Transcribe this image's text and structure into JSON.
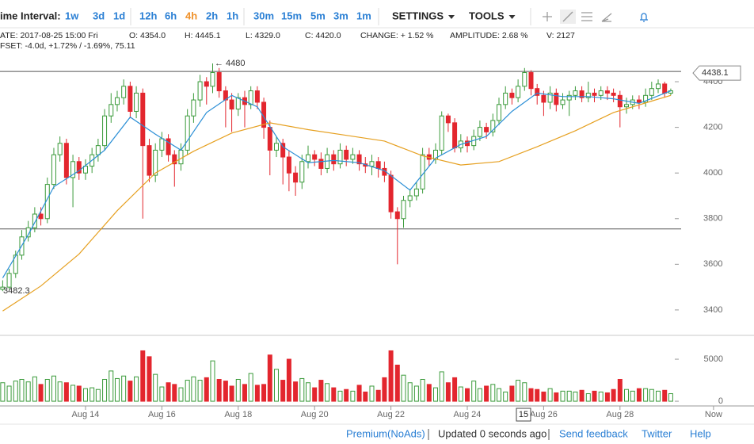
{
  "toolbar": {
    "label": "ime Interval:",
    "intervals": [
      [
        "1w",
        "3d",
        "1d"
      ],
      [
        "12h",
        "6h",
        "4h",
        "2h",
        "1h"
      ],
      [
        "30m",
        "15m",
        "5m",
        "3m",
        "1m"
      ]
    ],
    "active": "4h",
    "menus": [
      "SETTINGS",
      "TOOLS"
    ]
  },
  "info": {
    "line1": [
      "ATE: 2017-08-25 15:00 Fri",
      "O: 4354.0",
      "H: 4445.1",
      "L: 4329.0",
      "C: 4420.0",
      "CHANGE: + 1.52 %",
      "AMPLITUDE: 2.68 %",
      "V: 2127"
    ],
    "line2": "FSET: -4.0d, +1.72% / -1.69%, 75.11"
  },
  "chart_data": {
    "type": "candlestick",
    "xlim": [
      11.76,
      31.51
    ],
    "xticks": [
      {
        "value": 14,
        "label": "Aug 14"
      },
      {
        "value": 16,
        "label": "Aug 16"
      },
      {
        "value": 18,
        "label": "Aug 18"
      },
      {
        "value": 20,
        "label": "Aug 20"
      },
      {
        "value": 22,
        "label": "Aug 22"
      },
      {
        "value": 24,
        "label": "Aug 24"
      },
      {
        "value": 26,
        "label": "Aug 26"
      },
      {
        "value": 28,
        "label": "Aug 28"
      },
      {
        "value": 30.45,
        "label": "Now"
      }
    ],
    "ylim": [
      3292,
      4487
    ],
    "yticks": [
      3400,
      3600,
      3800,
      4000,
      4200,
      4400
    ],
    "y2lim": [
      -560,
      7740
    ],
    "y2ticks": [
      0,
      5000
    ],
    "colors": {
      "up": "#3a9a3a",
      "down": "#e3262e"
    },
    "x": [
      11.83,
      12,
      12.17,
      12.33,
      12.5,
      12.67,
      12.83,
      13,
      13.17,
      13.33,
      13.5,
      13.67,
      13.83,
      14,
      14.17,
      14.33,
      14.5,
      14.67,
      14.83,
      15,
      15.17,
      15.33,
      15.5,
      15.67,
      15.83,
      16,
      16.17,
      16.33,
      16.5,
      16.67,
      16.83,
      17,
      17.17,
      17.33,
      17.5,
      17.67,
      17.83,
      18,
      18.17,
      18.33,
      18.5,
      18.67,
      18.83,
      19,
      19.17,
      19.33,
      19.5,
      19.67,
      19.83,
      20,
      20.17,
      20.33,
      20.5,
      20.67,
      20.83,
      21,
      21.17,
      21.33,
      21.5,
      21.67,
      21.83,
      22,
      22.17,
      22.33,
      22.5,
      22.67,
      22.83,
      23,
      23.17,
      23.33,
      23.5,
      23.67,
      23.83,
      24,
      24.17,
      24.33,
      24.5,
      24.67,
      24.83,
      25,
      25.17,
      25.33,
      25.5,
      25.67,
      25.83,
      26,
      26.17,
      26.33,
      26.5,
      26.67,
      26.83,
      27,
      27.17,
      27.33,
      27.5,
      27.67,
      27.83,
      28,
      28.17,
      28.33,
      28.5,
      28.67,
      28.83,
      29,
      29.17,
      29.33
    ],
    "open": [
      3490,
      3500,
      3560,
      3640,
      3720,
      3760,
      3820,
      3800,
      3950,
      4080,
      4130,
      3980,
      4050,
      4000,
      4030,
      4080,
      4120,
      4250,
      4300,
      4330,
      4380,
      4270,
      4350,
      4120,
      3990,
      4100,
      4150,
      4080,
      4040,
      4100,
      4250,
      4320,
      4400,
      4380,
      4440,
      4360,
      4320,
      4280,
      4330,
      4300,
      4360,
      4310,
      4200,
      4100,
      4130,
      4070,
      4000,
      3960,
      4050,
      4080,
      4060,
      4020,
      4080,
      4040,
      4100,
      4060,
      4080,
      4040,
      4030,
      4050,
      4020,
      3990,
      3830,
      3800,
      3880,
      3900,
      3930,
      4080,
      4060,
      4100,
      4250,
      4220,
      4110,
      4140,
      4120,
      4160,
      4200,
      4180,
      4230,
      4300,
      4350,
      4330,
      4380,
      4440,
      4370,
      4340,
      4310,
      4350,
      4300,
      4320,
      4340,
      4360,
      4330,
      4350,
      4340,
      4360,
      4350,
      4340,
      4290,
      4300,
      4320,
      4310,
      4340,
      4370,
      4390,
      4350
    ],
    "high": [
      3530,
      3580,
      3660,
      3750,
      3790,
      3850,
      3850,
      3980,
      4110,
      4160,
      4150,
      4080,
      4070,
      4060,
      4110,
      4150,
      4280,
      4350,
      4360,
      4410,
      4400,
      4380,
      4370,
      4150,
      4130,
      4180,
      4170,
      4100,
      4130,
      4280,
      4350,
      4430,
      4420,
      4480,
      4460,
      4380,
      4350,
      4350,
      4360,
      4380,
      4380,
      4330,
      4230,
      4160,
      4150,
      4100,
      4030,
      4080,
      4120,
      4100,
      4090,
      4110,
      4100,
      4130,
      4120,
      4110,
      4100,
      4070,
      4080,
      4070,
      4050,
      4010,
      3850,
      3900,
      3930,
      3960,
      4110,
      4110,
      4130,
      4270,
      4260,
      4240,
      4170,
      4160,
      4190,
      4230,
      4220,
      4260,
      4330,
      4380,
      4370,
      4410,
      4460,
      4450,
      4390,
      4360,
      4380,
      4370,
      4350,
      4360,
      4380,
      4380,
      4400,
      4370,
      4380,
      4380,
      4370,
      4360,
      4330,
      4340,
      4340,
      4370,
      4400,
      4410,
      4400,
      4370
    ],
    "low": [
      3482.3,
      3490,
      3540,
      3620,
      3700,
      3740,
      3770,
      3780,
      3930,
      4050,
      3950,
      3850,
      3970,
      3970,
      4000,
      4050,
      4100,
      4220,
      4270,
      4300,
      4240,
      4240,
      3800,
      3960,
      3960,
      4070,
      4050,
      3940,
      4010,
      4080,
      4220,
      4290,
      4300,
      4350,
      4330,
      4200,
      4180,
      4250,
      4200,
      4280,
      4280,
      4150,
      3990,
      4070,
      3950,
      3920,
      3900,
      3930,
      4020,
      4030,
      3990,
      4000,
      4010,
      4020,
      4030,
      4040,
      4010,
      4000,
      3990,
      3980,
      3960,
      3800,
      3600,
      3760,
      3850,
      3880,
      3910,
      4030,
      4040,
      4080,
      4180,
      4090,
      4090,
      4090,
      4100,
      4140,
      4150,
      4160,
      4210,
      4280,
      4300,
      4310,
      4360,
      4340,
      4300,
      4250,
      4280,
      4270,
      4280,
      4250,
      4320,
      4310,
      4310,
      4310,
      4320,
      4320,
      4310,
      4200,
      4260,
      4280,
      4280,
      4290,
      4320,
      4350,
      4330,
      4340
    ],
    "close": [
      3500,
      3560,
      3640,
      3720,
      3760,
      3820,
      3800,
      3950,
      4080,
      4130,
      3980,
      4050,
      4000,
      4030,
      4080,
      4120,
      4250,
      4300,
      4330,
      4380,
      4270,
      4350,
      4120,
      3990,
      4100,
      4150,
      4080,
      4040,
      4100,
      4250,
      4320,
      4400,
      4380,
      4440,
      4360,
      4320,
      4280,
      4330,
      4300,
      4360,
      4310,
      4200,
      4100,
      4130,
      4070,
      4000,
      3960,
      4050,
      4080,
      4060,
      4020,
      4080,
      4040,
      4100,
      4060,
      4080,
      4040,
      4030,
      4050,
      4020,
      3990,
      3830,
      3800,
      3880,
      3900,
      3930,
      4080,
      4060,
      4100,
      4250,
      4220,
      4110,
      4140,
      4120,
      4160,
      4200,
      4180,
      4230,
      4300,
      4350,
      4330,
      4380,
      4440,
      4370,
      4340,
      4310,
      4350,
      4300,
      4320,
      4340,
      4360,
      4330,
      4350,
      4340,
      4360,
      4350,
      4340,
      4290,
      4300,
      4320,
      4310,
      4340,
      4370,
      4390,
      4350,
      4360
    ],
    "volume": [
      2200,
      1800,
      2400,
      2600,
      2300,
      2900,
      2000,
      2600,
      3000,
      2300,
      2200,
      1900,
      1800,
      1500,
      1600,
      1400,
      2600,
      3600,
      2700,
      3000,
      2400,
      2900,
      6000,
      5300,
      3200,
      1700,
      2200,
      2000,
      1600,
      2500,
      2900,
      2500,
      2800,
      4800,
      2600,
      2400,
      1800,
      2600,
      2000,
      3300,
      1900,
      2000,
      5500,
      3800,
      2500,
      5000,
      2300,
      2700,
      2200,
      1600,
      2500,
      2100,
      1600,
      1200,
      1400,
      1200,
      1900,
      1100,
      1800,
      1300,
      2800,
      6000,
      4300,
      3100,
      2200,
      1800,
      2600,
      2000,
      1600,
      3500,
      2200,
      2800,
      1700,
      1500,
      2400,
      1500,
      1800,
      2000,
      1500,
      1100,
      1800,
      2500,
      2200,
      1500,
      1400,
      1100,
      1500,
      1000,
      1200,
      1200,
      1100,
      1300,
      900,
      1200,
      1100,
      1000,
      1400,
      2600,
      1400,
      1200,
      1500,
      1500,
      1400,
      1200,
      1300,
      900
    ],
    "lines": [
      {
        "color": "#2b8fd6",
        "x": [
          11.83,
          12.5,
          13.17,
          13.83,
          14.5,
          15.17,
          15.83,
          16.5,
          17.17,
          17.83,
          18.5,
          19.17,
          19.83,
          20.5,
          21.17,
          21.83,
          22.5,
          23.17,
          23.83,
          24.5,
          25.17,
          25.83,
          26.5,
          27.17,
          27.83,
          28.5,
          29.33
        ],
        "values": [
          3540,
          3730,
          3940,
          4010,
          4100,
          4245,
          4170,
          4100,
          4265,
          4340,
          4290,
          4115,
          4045,
          4055,
          4045,
          4010,
          3925,
          4065,
          4125,
          4160,
          4270,
          4350,
          4335,
          4335,
          4325,
          4305,
          4360
        ]
      },
      {
        "color": "#e6a020",
        "x": [
          11.83,
          12.83,
          13.83,
          14.83,
          15.83,
          16.83,
          17.83,
          18.83,
          19.83,
          20.83,
          21.83,
          22.83,
          23.83,
          24.83,
          25.83,
          26.83,
          27.83,
          28.83,
          29.33
        ],
        "values": [
          3395,
          3505,
          3645,
          3835,
          4000,
          4095,
          4175,
          4220,
          4190,
          4165,
          4140,
          4075,
          4035,
          4050,
          4115,
          4185,
          4265,
          4315,
          4340
        ]
      }
    ],
    "levels": [
      4445,
      3755
    ],
    "last_price": 4438.1,
    "max_label": "← 4480",
    "min_label": "3482.3",
    "crosshair_label": "15"
  },
  "footer": {
    "links": [
      "Premium(NoAds)",
      "Updated 0 seconds ago",
      "Send feedback",
      "Twitter",
      "Help"
    ]
  }
}
